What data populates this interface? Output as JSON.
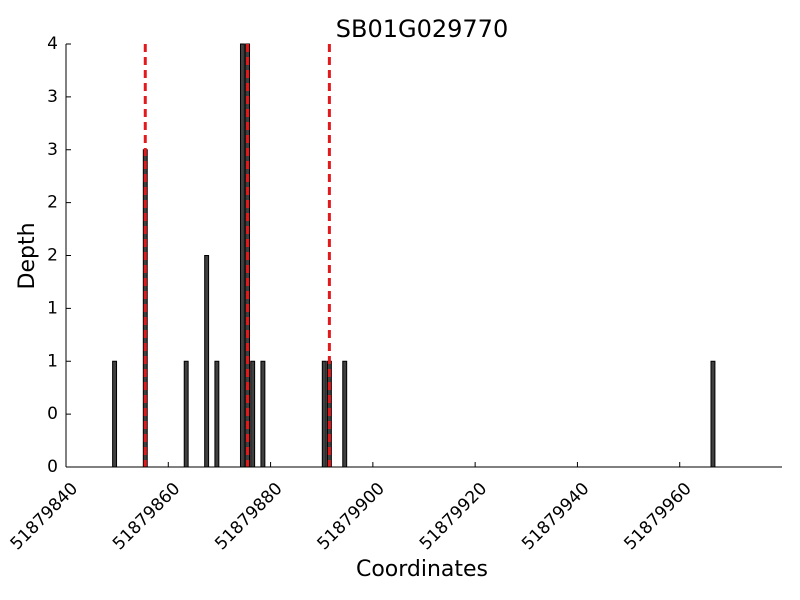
{
  "chart_data": {
    "type": "bar",
    "title": "SB01G029770",
    "xlabel": "Coordinates",
    "ylabel": "Depth",
    "xlim": [
      51879840,
      51879980
    ],
    "ylim": [
      0,
      4
    ],
    "x_ticks": [
      51879840,
      51879860,
      51879880,
      51879900,
      51879920,
      51879940,
      51879960
    ],
    "x_tick_labels": [
      "51879840",
      "51879860",
      "51879880",
      "51879900",
      "51879920",
      "51879940",
      "51879960"
    ],
    "y_ticks": [
      0,
      0.5,
      1,
      1.5,
      2,
      2.5,
      3,
      3.5,
      4
    ],
    "y_tick_labels": [
      "0",
      "0",
      "1",
      "1",
      "2",
      "2",
      "3",
      "3",
      "4"
    ],
    "bars": [
      {
        "x": 51879849,
        "value": 1
      },
      {
        "x": 51879855,
        "value": 3
      },
      {
        "x": 51879863,
        "value": 1
      },
      {
        "x": 51879867,
        "value": 2
      },
      {
        "x": 51879869,
        "value": 1
      },
      {
        "x": 51879874,
        "value": 4
      },
      {
        "x": 51879875,
        "value": 4
      },
      {
        "x": 51879876,
        "value": 1
      },
      {
        "x": 51879878,
        "value": 1
      },
      {
        "x": 51879890,
        "value": 1
      },
      {
        "x": 51879891,
        "value": 1
      },
      {
        "x": 51879894,
        "value": 1
      },
      {
        "x": 51879966,
        "value": 1
      }
    ],
    "reference_lines": [
      51879855.5,
      51879875.5,
      51879891.5
    ],
    "colors": {
      "bar_fill": "#404040",
      "bar_edge": "#000000",
      "reference_line": "#e31a1c"
    },
    "grid": false,
    "legend": "none"
  }
}
